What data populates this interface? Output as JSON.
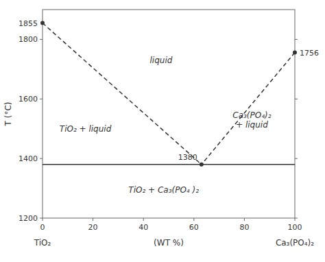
{
  "chart_data": {
    "type": "line",
    "ylabel": "T (°C)",
    "xlabel": [
      "TiO₂",
      "(WT %)",
      "Ca₃(PO₄)₂"
    ],
    "xlim": [
      0,
      100
    ],
    "ylim": [
      1200,
      1900
    ],
    "xticks": [
      0,
      20,
      40,
      60,
      80,
      100
    ],
    "yticks": [
      1200,
      1400,
      1600,
      1800
    ],
    "grid": false,
    "series": [
      {
        "x": [
          0,
          63
        ],
        "values": [
          1855,
          1380
        ],
        "color": "#333333",
        "line_style": "dashed"
      },
      {
        "x": [
          100,
          63
        ],
        "values": [
          1756,
          1380
        ],
        "color": "#333333",
        "line_style": "dashed"
      },
      {
        "x": [
          0,
          100
        ],
        "values": [
          1380,
          1380
        ],
        "color": "#333333",
        "line_style": "solid"
      },
      {
        "type": "scatter",
        "x": [
          0,
          100,
          63
        ],
        "values": [
          1855,
          1756,
          1380
        ],
        "color": "#333333",
        "marker": "dot",
        "data_labels": true
      }
    ],
    "annotations": [
      {
        "text": "liquid",
        "x": 47,
        "y": 1730
      },
      {
        "text": "TiO₂ + liquid",
        "x": 17,
        "y": 1500
      },
      {
        "text": "Ca₃(PO₄)₂\n+ liquid",
        "x": 83,
        "y": 1530
      },
      {
        "text": "TiO₂ + Ca₃(PO₄ )₂",
        "x": 48,
        "y": 1295
      }
    ]
  }
}
